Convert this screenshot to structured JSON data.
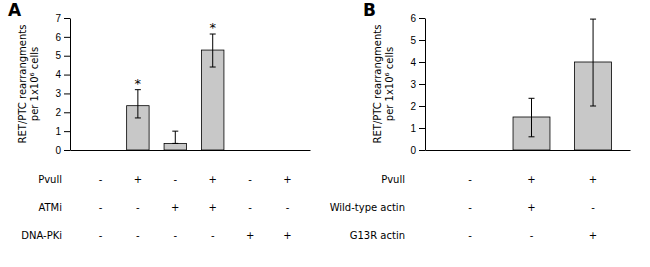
{
  "chart_data": [
    {
      "type": "bar",
      "title": "A",
      "y_label": "RET/PTC rearrangments\nper 1x10⁶ cells",
      "categories": [
        null,
        null,
        null,
        null,
        null,
        null
      ],
      "values": [
        0,
        2.35,
        0.35,
        5.3,
        0,
        0
      ],
      "errors_upper": [
        0,
        0.85,
        0.65,
        0.85,
        0,
        0
      ],
      "errors_lower": [
        0,
        0.65,
        0.0,
        0.9,
        0,
        0
      ],
      "color": "#c8c8c8",
      "ylim": [
        0,
        7
      ],
      "yticks": [
        0,
        1,
        2,
        3,
        4,
        5,
        6,
        7
      ],
      "annotations": [
        {
          "text": "*",
          "index": 1
        },
        {
          "text": "*",
          "index": 3
        }
      ],
      "table": {
        "row_labels": [
          "Pvull",
          "ATMi",
          "DNA-PKi"
        ],
        "rows": [
          [
            "-",
            "+",
            "-",
            "+",
            "-",
            "+"
          ],
          [
            "-",
            "-",
            "+",
            "+",
            "-",
            "-"
          ],
          [
            "-",
            "-",
            "-",
            "-",
            "+",
            "+"
          ]
        ]
      }
    },
    {
      "type": "bar",
      "title": "B",
      "y_label": "RET/PTC rearrangments\nper 1x10⁶ cells",
      "categories": [
        null,
        null,
        null
      ],
      "values": [
        0,
        1.5,
        4.0
      ],
      "errors_upper": [
        0,
        0.85,
        1.95
      ],
      "errors_lower": [
        0,
        0.9,
        2.0
      ],
      "color": "#c8c8c8",
      "ylim": [
        0,
        6
      ],
      "yticks": [
        0,
        1,
        2,
        3,
        4,
        5,
        6
      ],
      "table": {
        "row_labels": [
          "Pvull",
          "Wild-type actin",
          "G13R actin"
        ],
        "rows": [
          [
            "-",
            "+",
            "+"
          ],
          [
            "-",
            "+",
            "-"
          ],
          [
            "-",
            "-",
            "+"
          ]
        ]
      }
    }
  ]
}
